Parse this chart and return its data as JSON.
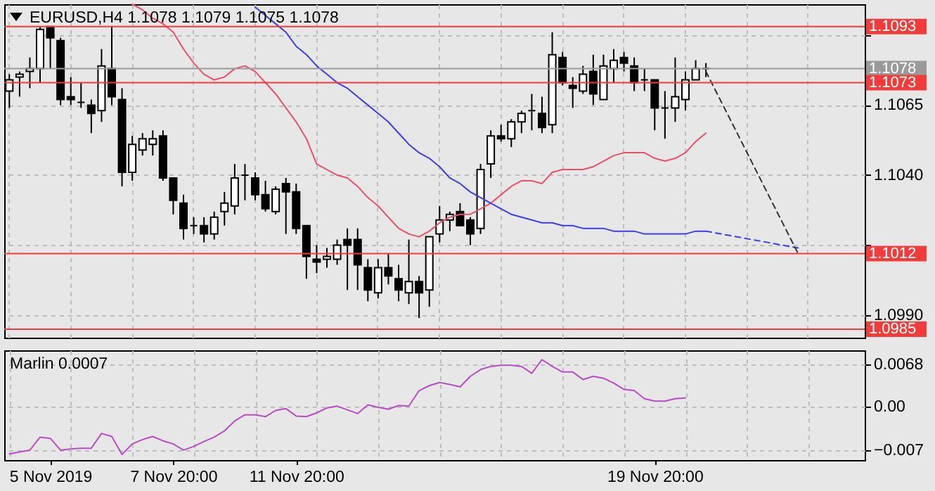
{
  "chart_data": [
    {
      "type": "candlestick",
      "title": "EURUSD,H4 1.1078 1.1079 1.1075 1.1078",
      "categories": [
        null,
        null,
        null,
        null,
        null,
        null,
        null,
        null,
        null,
        null,
        null,
        null,
        null,
        null,
        null,
        null,
        null,
        null,
        null,
        null,
        null,
        null,
        null,
        null,
        null,
        null,
        null,
        null,
        null,
        null,
        null,
        null,
        null,
        null,
        null,
        null,
        null,
        null,
        null,
        null,
        null,
        null,
        null,
        null,
        null,
        null,
        null,
        null,
        null,
        null,
        null,
        null,
        null,
        null,
        null,
        null,
        null,
        null,
        null,
        null,
        null,
        null,
        null,
        null,
        null,
        null,
        null,
        null,
        null,
        null,
        null,
        null,
        null,
        null,
        null,
        null,
        null,
        null,
        null,
        null,
        null,
        null,
        null,
        null
      ],
      "ohlc": [
        [
          1.107,
          1.1076,
          1.1064,
          1.1074
        ],
        [
          1.1075,
          1.1077,
          1.1068,
          1.1076
        ],
        [
          1.1077,
          1.1082,
          1.1071,
          1.1078
        ],
        [
          1.1078,
          1.1093,
          1.1073,
          1.1092
        ],
        [
          1.1093,
          1.1093,
          1.1078,
          1.1089
        ],
        [
          1.1088,
          1.1089,
          1.1065,
          1.1067
        ],
        [
          1.1068,
          1.1075,
          1.1065,
          1.1067
        ],
        [
          1.1066,
          1.1073,
          1.1064,
          1.1066
        ],
        [
          1.1065,
          1.1067,
          1.1055,
          1.1062
        ],
        [
          1.1063,
          1.1085,
          1.1059,
          1.1079
        ],
        [
          1.1078,
          1.1093,
          1.1065,
          1.1068
        ],
        [
          1.1067,
          1.1071,
          1.1036,
          1.1041
        ],
        [
          1.1041,
          1.1054,
          1.1038,
          1.1051
        ],
        [
          1.1049,
          1.1055,
          1.1047,
          1.1053
        ],
        [
          1.1051,
          1.1056,
          1.1047,
          1.1053
        ],
        [
          1.1054,
          1.1056,
          1.1038,
          1.1039
        ],
        [
          1.1039,
          1.1039,
          1.1026,
          1.1031
        ],
        [
          1.103,
          1.1033,
          1.1017,
          1.1021
        ],
        [
          1.1022,
          1.1025,
          1.1019,
          1.1022
        ],
        [
          1.1022,
          1.1025,
          1.1016,
          1.1019
        ],
        [
          1.1019,
          1.1027,
          1.1017,
          1.1025
        ],
        [
          1.1027,
          1.1034,
          1.1022,
          1.103
        ],
        [
          1.1029,
          1.1044,
          1.1026,
          1.1039
        ],
        [
          1.104,
          1.1044,
          1.1031,
          1.104
        ],
        [
          1.1039,
          1.1041,
          1.1031,
          1.1033
        ],
        [
          1.1033,
          1.1038,
          1.1027,
          1.1028
        ],
        [
          1.1027,
          1.1036,
          1.1026,
          1.1035
        ],
        [
          1.1037,
          1.1039,
          1.1019,
          1.1034
        ],
        [
          1.1034,
          1.1037,
          1.1019,
          1.1021
        ],
        [
          1.1022,
          1.1022,
          1.1003,
          1.1011
        ],
        [
          1.101,
          1.1015,
          1.1005,
          1.1009
        ],
        [
          1.101,
          1.1014,
          1.1007,
          1.1011
        ],
        [
          1.101,
          1.1017,
          1.1008,
          1.1015
        ],
        [
          1.1017,
          1.1021,
          1.0999,
          1.1015
        ],
        [
          1.1017,
          1.1021,
          1.0999,
          1.1008
        ],
        [
          1.1007,
          1.101,
          1.0995,
          1.0999
        ],
        [
          1.0998,
          1.101,
          1.0996,
          1.1007
        ],
        [
          1.1007,
          1.1012,
          1.1001,
          1.1004
        ],
        [
          1.1003,
          1.1008,
          1.0995,
          1.0999
        ],
        [
          1.0998,
          1.1017,
          1.0994,
          1.1002
        ],
        [
          1.1002,
          1.1004,
          1.0989,
          1.0998
        ],
        [
          1.0999,
          1.1018,
          1.0993,
          1.1018
        ],
        [
          1.1019,
          1.1029,
          1.1016,
          1.1024
        ],
        [
          1.1024,
          1.1027,
          1.102,
          1.1026
        ],
        [
          1.1027,
          1.103,
          1.1022,
          1.1022
        ],
        [
          1.1024,
          1.1025,
          1.1015,
          1.1019
        ],
        [
          1.1021,
          1.1044,
          1.1019,
          1.1042
        ],
        [
          1.1044,
          1.1056,
          1.1039,
          1.1054
        ],
        [
          1.1054,
          1.1058,
          1.1052,
          1.1053
        ],
        [
          1.1053,
          1.106,
          1.105,
          1.1059
        ],
        [
          1.1059,
          1.1063,
          1.1055,
          1.1062
        ],
        [
          1.1063,
          1.1069,
          1.1056,
          1.1063
        ],
        [
          1.1062,
          1.1068,
          1.1055,
          1.1057
        ],
        [
          1.1058,
          1.1091,
          1.1055,
          1.1083
        ],
        [
          1.1082,
          1.1084,
          1.1072,
          1.1073
        ],
        [
          1.1072,
          1.1075,
          1.1064,
          1.1071
        ],
        [
          1.107,
          1.1079,
          1.1069,
          1.1076
        ],
        [
          1.1077,
          1.1083,
          1.1065,
          1.1069
        ],
        [
          1.1067,
          1.1083,
          1.1067,
          1.1079
        ],
        [
          1.1078,
          1.1085,
          1.1073,
          1.1081
        ],
        [
          1.1082,
          1.1084,
          1.1077,
          1.108
        ],
        [
          1.1079,
          1.1082,
          1.107,
          1.1073
        ],
        [
          1.1074,
          1.1078,
          1.107,
          1.1074
        ],
        [
          1.1074,
          1.1074,
          1.1056,
          1.1064
        ],
        [
          1.1064,
          1.107,
          1.1053,
          1.1064
        ],
        [
          1.1064,
          1.1082,
          1.1059,
          1.1068
        ],
        [
          1.1067,
          1.1077,
          1.1063,
          1.1074
        ],
        [
          1.1074,
          1.1081,
          1.1074,
          1.1078
        ],
        [
          1.1078,
          1.108,
          1.1075,
          1.1078
        ],
        null,
        null,
        null,
        null,
        null,
        null,
        null,
        null,
        null,
        null,
        null,
        null,
        null,
        null,
        null
      ],
      "series": [
        {
          "type": "line",
          "color": "#e8506a",
          "values": [
            null,
            null,
            null,
            null,
            null,
            null,
            null,
            null,
            null,
            null,
            null,
            null,
            1.1101,
            1.1099,
            1.1096,
            1.1094,
            1.1091,
            1.1085,
            1.108,
            1.1076,
            1.1074,
            1.1075,
            1.1078,
            1.1079,
            1.1077,
            1.1073,
            1.1069,
            1.1064,
            1.1059,
            1.1053,
            1.1044,
            1.1042,
            1.104,
            1.1039,
            1.1036,
            1.1032,
            1.1029,
            1.1025,
            1.1021,
            1.1019,
            1.1018,
            1.102,
            1.1023,
            1.1025,
            1.1026,
            1.1026,
            1.1028,
            1.103,
            1.1033,
            1.1036,
            1.1038,
            1.1038,
            1.1037,
            1.1041,
            1.1042,
            1.1042,
            1.1042,
            1.1043,
            1.1045,
            1.1047,
            1.1048,
            1.1048,
            1.1048,
            1.1046,
            1.1045,
            1.1046,
            1.1048,
            1.1052,
            1.1055,
            null,
            null,
            null,
            null,
            null,
            null,
            null,
            null,
            null,
            null,
            null,
            null,
            null,
            null,
            null
          ]
        },
        {
          "type": "line",
          "color": "#3c3cf0",
          "values": [
            null,
            null,
            null,
            null,
            null,
            null,
            null,
            null,
            null,
            null,
            null,
            null,
            null,
            null,
            null,
            null,
            null,
            null,
            null,
            null,
            null,
            null,
            null,
            null,
            1.11,
            1.1097,
            1.1094,
            1.1091,
            1.1086,
            1.1083,
            1.1079,
            1.1076,
            1.1073,
            1.1071,
            1.1068,
            1.1065,
            1.1062,
            1.1059,
            1.1055,
            1.1051,
            1.1048,
            1.1046,
            1.1043,
            1.1039,
            1.1037,
            1.1034,
            1.1032,
            1.103,
            1.1028,
            1.1026,
            1.1025,
            1.1024,
            1.1023,
            1.1023,
            1.1022,
            1.1022,
            1.1021,
            1.1021,
            1.1021,
            1.102,
            1.102,
            1.102,
            1.1019,
            1.1019,
            1.1019,
            1.1019,
            1.1019,
            1.102,
            1.102,
            null,
            null,
            null,
            null,
            null,
            null,
            null,
            null,
            null,
            null,
            null,
            null,
            null,
            null,
            null
          ]
        },
        {
          "type": "line",
          "color": "#3c3cf0",
          "line_style": "dashed",
          "values": [
            null,
            null,
            null,
            null,
            null,
            null,
            null,
            null,
            null,
            null,
            null,
            null,
            null,
            null,
            null,
            null,
            null,
            null,
            null,
            null,
            null,
            null,
            null,
            null,
            null,
            null,
            null,
            null,
            null,
            null,
            null,
            null,
            null,
            null,
            null,
            null,
            null,
            null,
            null,
            null,
            null,
            null,
            null,
            null,
            null,
            null,
            null,
            null,
            null,
            null,
            null,
            null,
            null,
            null,
            null,
            null,
            null,
            null,
            null,
            null,
            null,
            null,
            null,
            null,
            null,
            null,
            null,
            null,
            1.102,
            null,
            null,
            null,
            null,
            null,
            null,
            null,
            null,
            1.1014,
            null,
            null,
            null,
            null,
            null,
            null
          ]
        },
        {
          "type": "line",
          "color": "#333333",
          "line_style": "dashed",
          "values": [
            null,
            null,
            null,
            null,
            null,
            null,
            null,
            null,
            null,
            null,
            null,
            null,
            null,
            null,
            null,
            null,
            null,
            null,
            null,
            null,
            null,
            null,
            null,
            null,
            null,
            null,
            null,
            null,
            null,
            null,
            null,
            null,
            null,
            null,
            null,
            null,
            null,
            null,
            null,
            null,
            null,
            null,
            null,
            null,
            null,
            null,
            null,
            null,
            null,
            null,
            null,
            null,
            null,
            null,
            null,
            null,
            null,
            null,
            null,
            null,
            null,
            null,
            null,
            null,
            null,
            null,
            null,
            null,
            1.1077,
            null,
            null,
            null,
            null,
            null,
            null,
            null,
            null,
            1.1012,
            null,
            null,
            null,
            null,
            null,
            null
          ]
        }
      ],
      "ylim": [
        1.0982,
        1.1101
      ],
      "yticks": [
        {
          "value": 1.099,
          "label": "1.0990"
        },
        {
          "value": 1.1015,
          "label": null
        },
        {
          "value": 1.104,
          "label": "1.1040"
        },
        {
          "value": 1.1065,
          "label": "1.1065"
        },
        {
          "value": 1.109,
          "label": null
        }
      ],
      "grid": true,
      "tick_labels": "y",
      "ref_lines": [
        {
          "axis": "y",
          "value": 1.1093,
          "label": "1.1093",
          "color": "#f23b3b"
        },
        {
          "axis": "y",
          "value": 1.1078,
          "label": "1.1078",
          "color": "#9a9a9a"
        },
        {
          "axis": "y",
          "value": 1.1073,
          "label": "1.1073",
          "color": "#f23b3b"
        },
        {
          "axis": "y",
          "value": 1.1012,
          "label": "1.1012",
          "color": "#f23b3b"
        },
        {
          "axis": "y",
          "value": 1.0985,
          "label": "1.0985",
          "color": "#f23b3b"
        }
      ]
    },
    {
      "type": "line",
      "title": "Marlin 0.0007",
      "categories": [
        null,
        null,
        null,
        null,
        "5 Nov 2019",
        null,
        null,
        null,
        null,
        null,
        null,
        null,
        null,
        null,
        null,
        null,
        "7 Nov 20:00",
        null,
        null,
        null,
        null,
        null,
        null,
        null,
        null,
        null,
        null,
        null,
        "11 Nov 20:00",
        null,
        null,
        null,
        null,
        null,
        null,
        null,
        null,
        null,
        null,
        null,
        null,
        null,
        null,
        null,
        null,
        null,
        null,
        null,
        null,
        null,
        null,
        null,
        null,
        null,
        null,
        null,
        null,
        null,
        null,
        null,
        null,
        null,
        null,
        "19 Nov 20:00",
        null,
        null,
        null,
        null,
        null,
        null,
        null,
        null,
        null,
        null,
        null,
        null,
        null,
        null,
        null,
        null,
        null,
        null,
        null,
        null
      ],
      "series": [
        {
          "color": "#b84cc4",
          "values": [
            -0.0076,
            -0.0073,
            -0.007,
            -0.0049,
            -0.0051,
            -0.007,
            -0.0068,
            -0.0067,
            -0.0067,
            -0.0043,
            -0.0048,
            -0.0077,
            -0.006,
            -0.0053,
            -0.0048,
            -0.0055,
            -0.006,
            -0.007,
            -0.0064,
            -0.0056,
            -0.0049,
            -0.0039,
            -0.0023,
            -0.0013,
            -0.0013,
            -0.0016,
            -0.0006,
            -0.0003,
            -0.0015,
            -0.0016,
            -0.001,
            -0.0002,
            0.0001,
            -0.0005,
            -0.0011,
            0.0003,
            -0.0001,
            -0.0004,
            0.0002,
            0.0001,
            0.0026,
            0.0034,
            0.0039,
            0.0036,
            0.0032,
            0.0049,
            0.006,
            0.0065,
            0.0067,
            0.0067,
            0.0065,
            0.0054,
            0.0076,
            0.0065,
            0.0056,
            0.0056,
            0.0044,
            0.0049,
            0.0046,
            0.0038,
            0.0028,
            0.0026,
            0.0013,
            0.0009,
            0.0009,
            0.0013,
            0.0014,
            null,
            null,
            null,
            null,
            null,
            null,
            null,
            null,
            null,
            null,
            null,
            null,
            null,
            null,
            null,
            null,
            null
          ]
        }
      ],
      "ylim": [
        -0.0086,
        0.0091
      ],
      "yticks": [
        -0.007,
        {
          "value": 0,
          "label": "0.00"
        },
        {
          "value": 0.0068,
          "label": "0.0068"
        }
      ],
      "grid": true
    }
  ]
}
